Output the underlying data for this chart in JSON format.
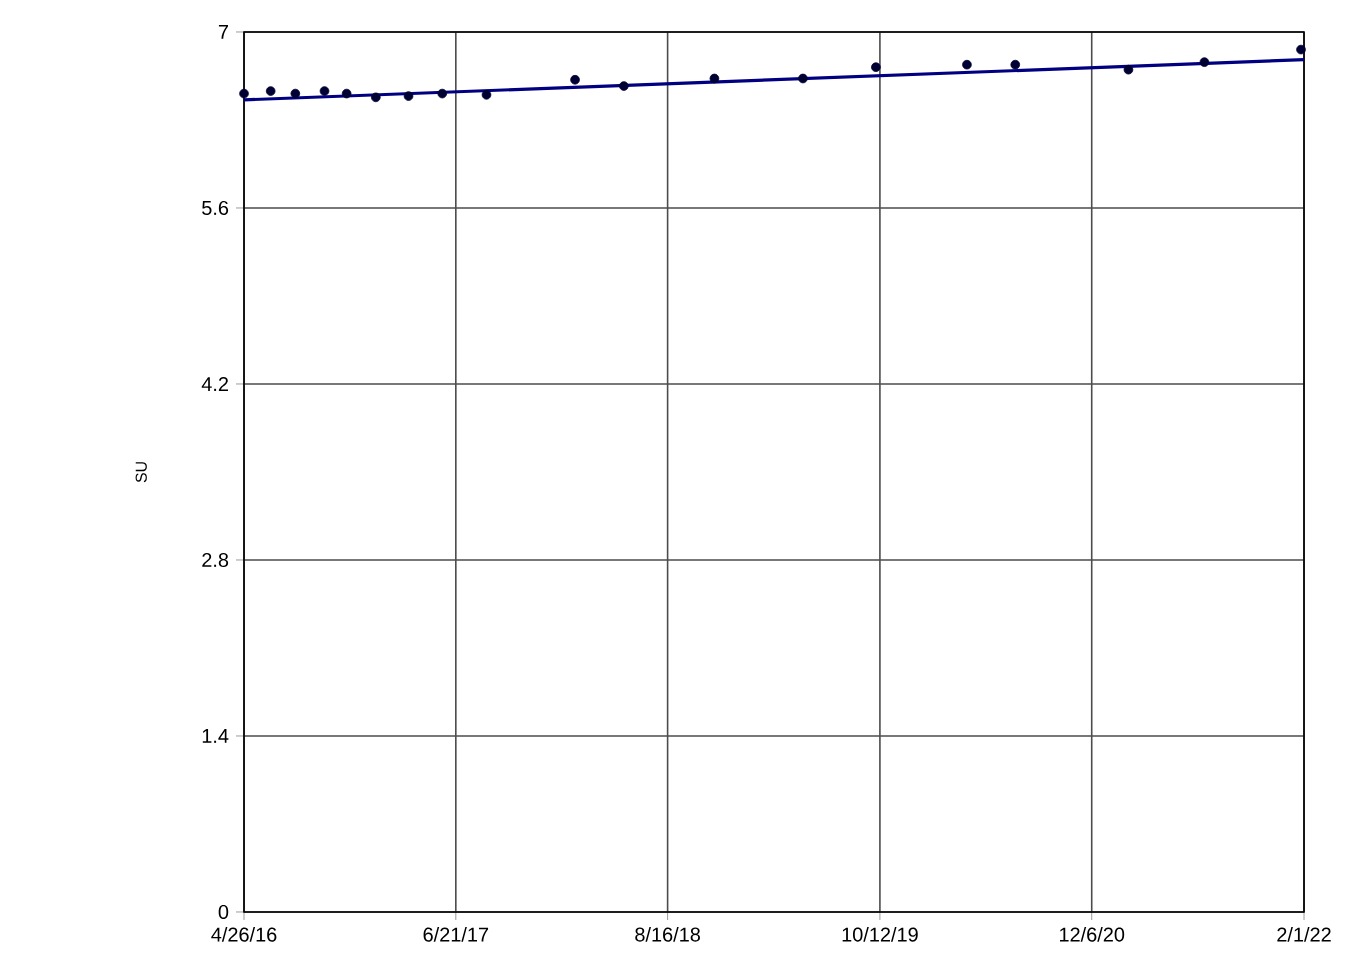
{
  "chart_data": {
    "type": "scatter",
    "ylabel": "SU",
    "xlim": [
      "2016-04-26",
      "2022-02-01"
    ],
    "xticks": [
      {
        "value": "2016-04-26",
        "label": "4/26/16"
      },
      {
        "value": "2017-06-21",
        "label": "6/21/17"
      },
      {
        "value": "2018-08-16",
        "label": "8/16/18"
      },
      {
        "value": "2019-10-12",
        "label": "10/12/19"
      },
      {
        "value": "2020-12-06",
        "label": "12/6/20"
      },
      {
        "value": "2022-02-01",
        "label": "2/1/22"
      }
    ],
    "ylim": [
      0,
      7
    ],
    "yticks": [
      0,
      1.4,
      2.8,
      4.2,
      5.6,
      7
    ],
    "grid": true,
    "series": [
      {
        "marker": "circle",
        "color": "#000033",
        "x": [
          "2016-04-26",
          "2016-06-18",
          "2016-08-06",
          "2016-10-03",
          "2016-11-16",
          "2017-01-13",
          "2017-03-19",
          "2017-05-25",
          "2017-08-21",
          "2018-02-13",
          "2018-05-21",
          "2018-11-17",
          "2019-05-12",
          "2019-10-04",
          "2020-04-02",
          "2020-07-07",
          "2021-02-17",
          "2021-07-18",
          "2022-01-26"
        ],
        "values": [
          6.51,
          6.53,
          6.51,
          6.53,
          6.51,
          6.48,
          6.49,
          6.51,
          6.5,
          6.62,
          6.57,
          6.63,
          6.63,
          6.72,
          6.74,
          6.74,
          6.7,
          6.76,
          6.86
        ]
      },
      {
        "type": "line",
        "marker": "none",
        "line_style": "solid",
        "color": "#000080",
        "x": [
          "2016-04-26",
          "2022-02-01"
        ],
        "values": [
          6.46,
          6.78
        ]
      }
    ]
  }
}
